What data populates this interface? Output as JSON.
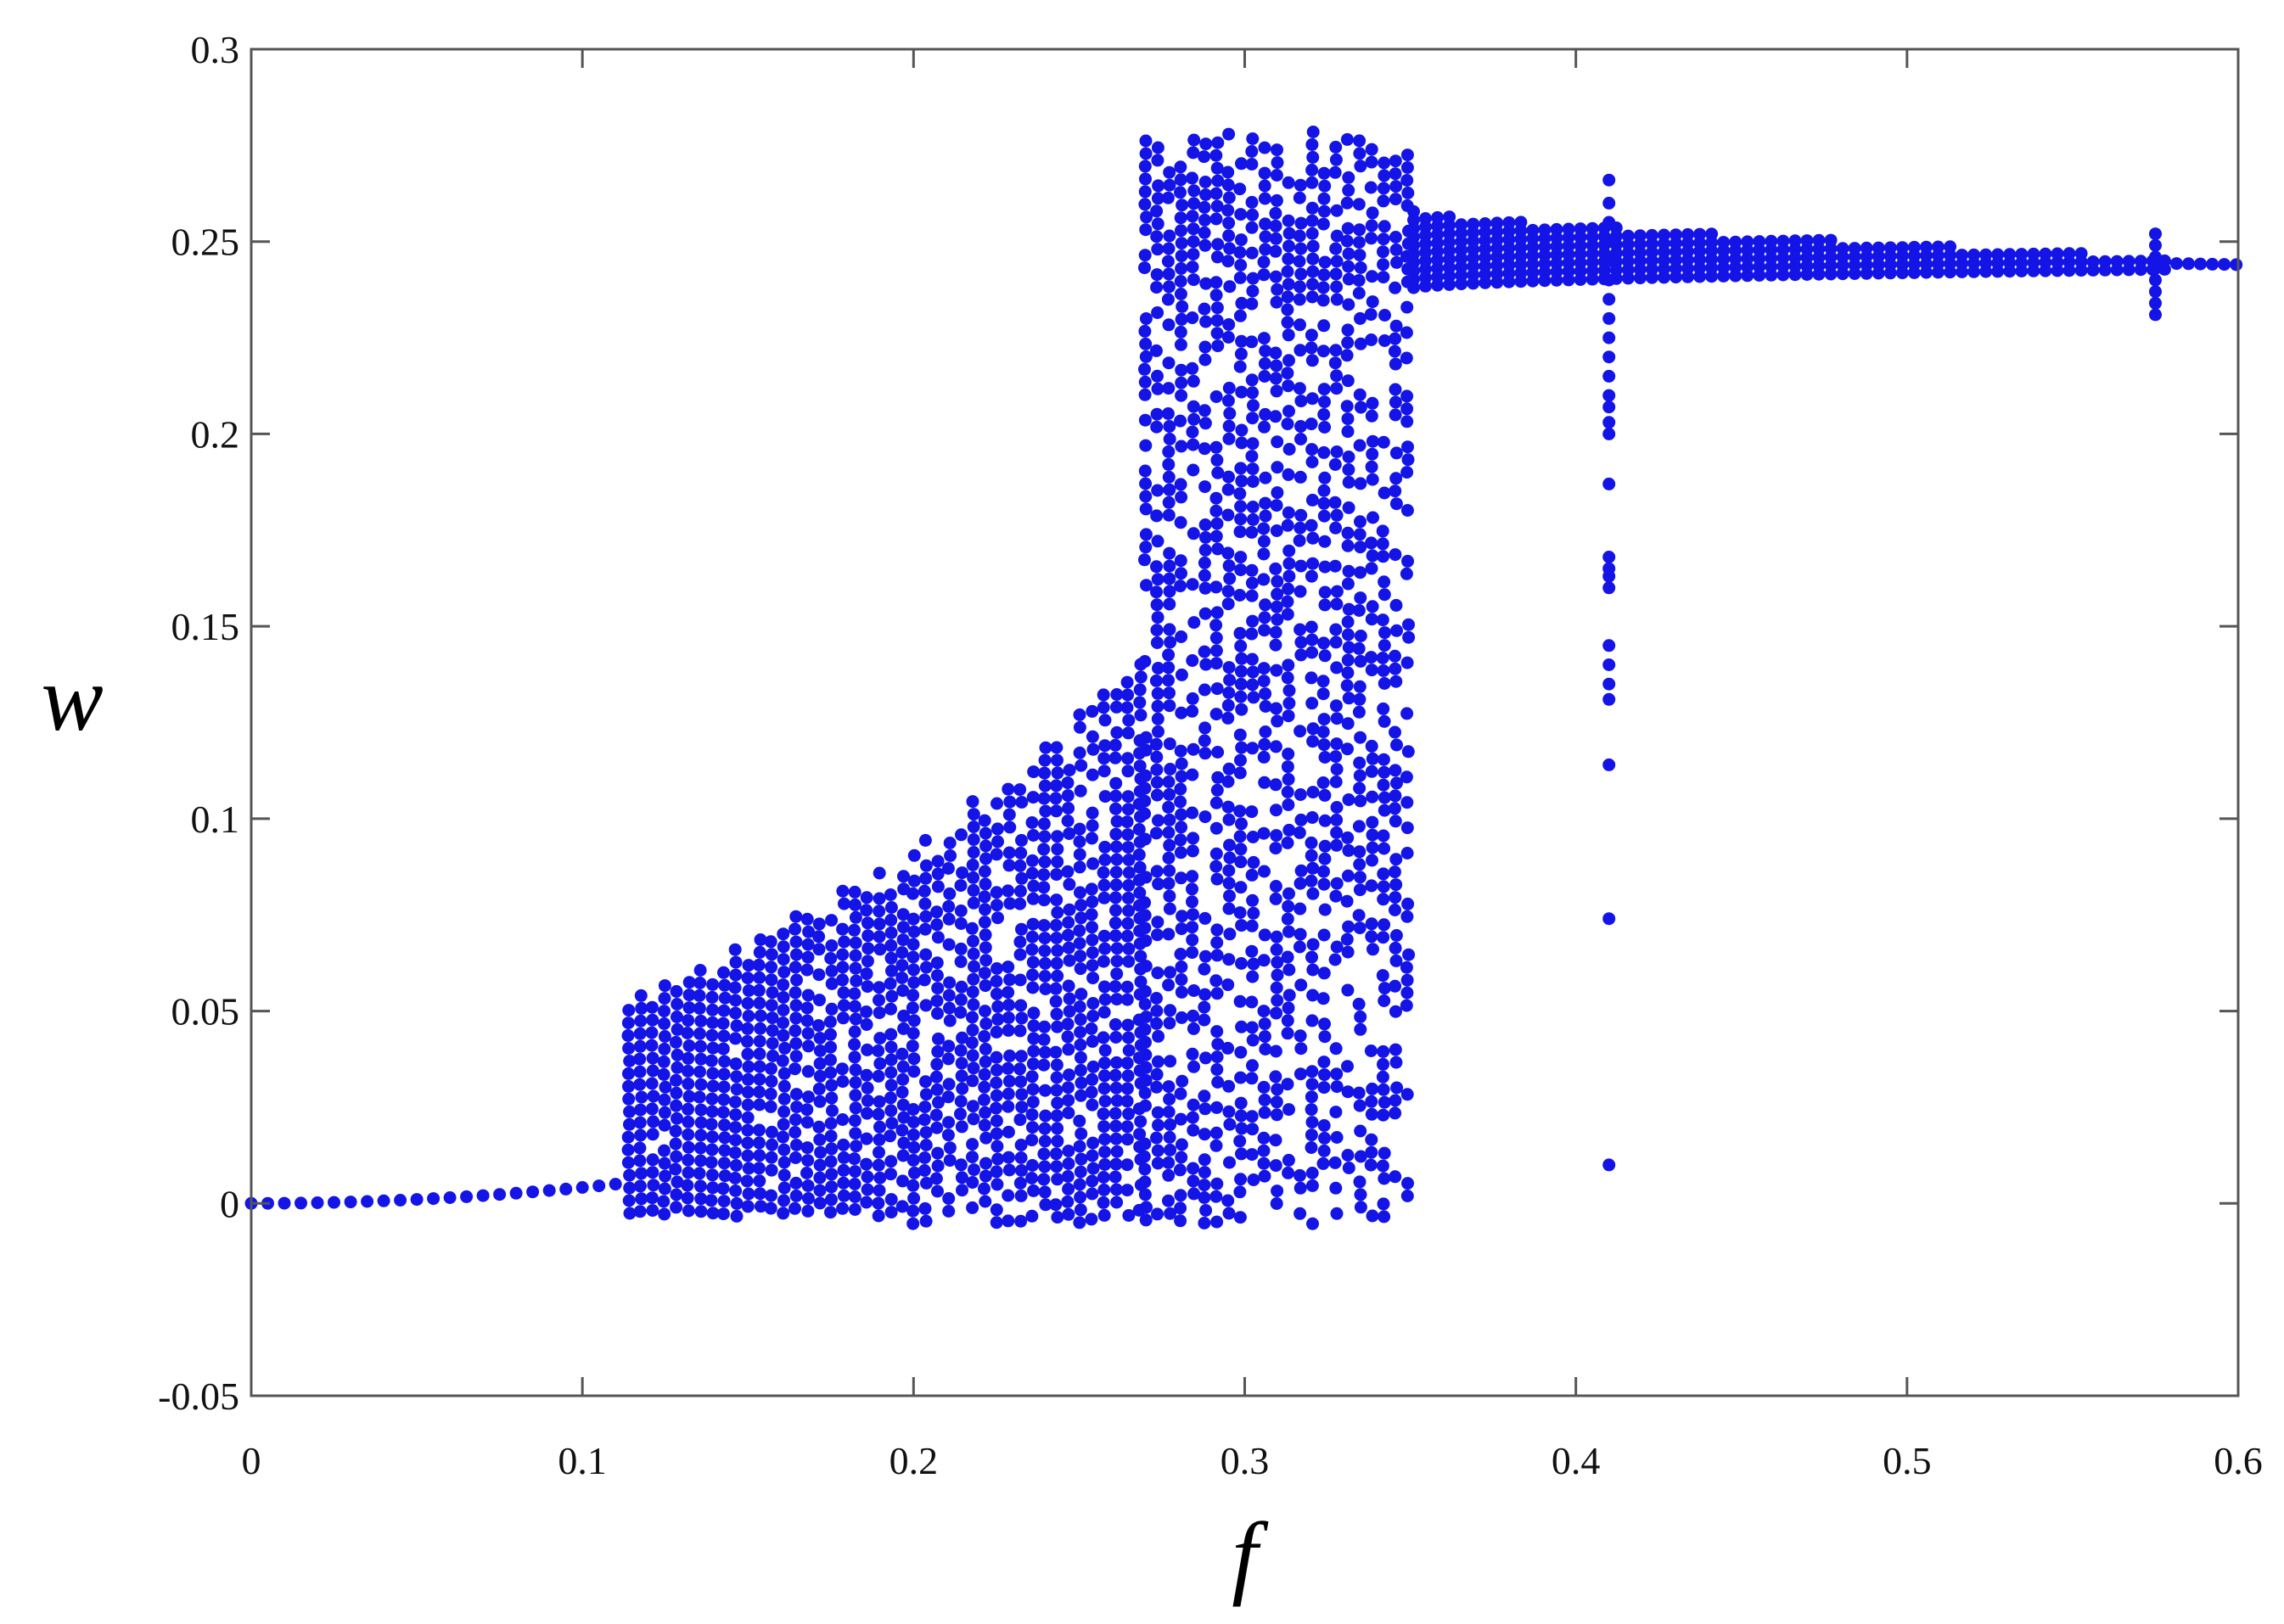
{
  "chart_data": {
    "type": "scatter",
    "title": "",
    "xlabel": "f",
    "ylabel": "w",
    "xlim": [
      0,
      0.6
    ],
    "ylim": [
      -0.05,
      0.3
    ],
    "xticks": [
      "0",
      "0.1",
      "0.2",
      "0.3",
      "0.4",
      "0.5",
      "0.6"
    ],
    "yticks": [
      "-0.05",
      "0",
      "0.05",
      "0.1",
      "0.15",
      "0.2",
      "0.25",
      "0.3"
    ],
    "grid": false,
    "legend": "none",
    "marker_color": "#1414e6",
    "description_of_points": "bifurcation-style diagram: each column is a set of w values at a given f",
    "regions": [
      {
        "name": "near-zero branch",
        "f_range": [
          0.0,
          0.11
        ],
        "w_start": 0.0,
        "w_end": 0.005,
        "step": 0.005
      },
      {
        "name": "low band",
        "f_range": [
          0.114,
          0.2
        ],
        "w_low": -0.002,
        "w_top_start": 0.051,
        "w_top_end": 0.09,
        "step": 0.0033
      },
      {
        "name": "rising band",
        "f_range": [
          0.2,
          0.27
        ],
        "w_low": -0.004,
        "w_top_start": 0.09,
        "w_top_end": 0.14,
        "step": 0.0033
      },
      {
        "name": "wide chaotic band",
        "f_range": [
          0.27,
          0.351
        ],
        "w_low": -0.004,
        "w_top": 0.28,
        "step": 0.0033
      },
      {
        "name": "upper branch",
        "f_range": [
          0.351,
          0.6
        ],
        "w_center_start": 0.248,
        "w_center_end": 0.244,
        "spread_start": 0.01,
        "spread_end": 0.001,
        "step": 0.0033
      }
    ],
    "spikes": [
      {
        "f": 0.41,
        "w_values": [
          0.01,
          0.074,
          0.114,
          0.131,
          0.135,
          0.14,
          0.145,
          0.16,
          0.163,
          0.165,
          0.168,
          0.187,
          0.2,
          0.203,
          0.207,
          0.21,
          0.215,
          0.22,
          0.225,
          0.23,
          0.235,
          0.24,
          0.245,
          0.25,
          0.255,
          0.26,
          0.266
        ]
      },
      {
        "f": 0.575,
        "w_values": [
          0.231,
          0.234,
          0.237,
          0.24,
          0.243,
          0.246,
          0.249,
          0.252
        ]
      }
    ]
  }
}
